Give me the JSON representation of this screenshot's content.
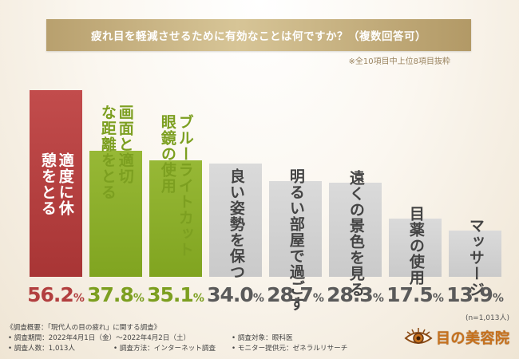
{
  "title": "疲れ目を軽減させるために有効なことは何ですか？（複数回答可）",
  "subnote": "※全10項目中上位8項目抜粋",
  "n_note": "(n=1,013人)",
  "colors": {
    "first": "#b23f3f",
    "green": "#8aad2a",
    "gray": "#d2d2d2",
    "gray_text": "#5a5a5a",
    "green_text": "#7c9f20",
    "red_text": "#b23f3f"
  },
  "chart_data": {
    "type": "bar",
    "title": "疲れ目を軽減させるために有効なことは何ですか？（複数回答可）",
    "categories": [
      "適度に休憩をとる",
      "画面と適切な距離をとる",
      "ブルーライトカット眼鏡の使用",
      "良い姿勢を保つ",
      "明るい部屋で過ごす",
      "遠くの景色を見る",
      "目薬の使用",
      "マッサージ"
    ],
    "values": [
      56.2,
      37.8,
      35.1,
      34.0,
      28.7,
      28.3,
      17.5,
      13.9
    ],
    "value_labels": [
      "56.2",
      "37.8",
      "35.1",
      "34.0",
      "28.7",
      "28.3",
      "17.5",
      "13.9"
    ],
    "unit": "%",
    "ylim": [
      0,
      60
    ],
    "grid": false,
    "legend": "none"
  },
  "bar_labels": [
    "適度に休\n憩をとる",
    "画面と適切\nな距離をとる",
    "ブルーライトカット\n眼鏡の使用",
    "良い姿勢を保つ",
    "明るい部屋で過ごす",
    "遠くの景色を見る",
    "目薬の使用",
    "マッサージ"
  ],
  "bar_styles": [
    "first",
    "green",
    "green",
    "gray",
    "gray",
    "gray",
    "gray",
    "gray"
  ],
  "footer": {
    "overview": "《調査概要：「現代人の目の疲れ」に関する調査》",
    "period": "• 調査期間：2022年4月1日（金）〜2022年4月2日（土）",
    "count": "• 調査人数：1,013人",
    "method": "• 調査方法：インターネット調査",
    "target": "• 調査対象：眼科医",
    "provider": "• モニター提供元：ゼネラルリサーチ"
  },
  "logo": {
    "icon": "eye-icon",
    "text": "目の美容院"
  }
}
